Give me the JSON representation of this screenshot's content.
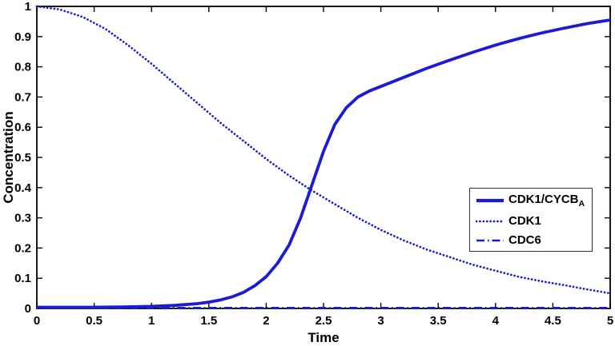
{
  "figure": {
    "background": "#ffffff",
    "frame_color": "#000000"
  },
  "chart_data": {
    "type": "line",
    "title": "",
    "xlabel": "Time",
    "ylabel": "Concentration",
    "xlim": [
      0,
      5
    ],
    "ylim": [
      0,
      1
    ],
    "grid": false,
    "legend_position": "right-center",
    "xticks": [
      0,
      0.5,
      1,
      1.5,
      2,
      2.5,
      3,
      3.5,
      4,
      4.5,
      5
    ],
    "xtick_labels": [
      "0",
      "0.5",
      "1",
      "1.5",
      "2",
      "2.5",
      "3",
      "3.5",
      "4",
      "4.5",
      "5"
    ],
    "yticks": [
      0,
      0.1,
      0.2,
      0.3,
      0.4,
      0.5,
      0.6,
      0.7,
      0.8,
      0.9,
      1
    ],
    "ytick_labels": [
      "0",
      "0.1",
      "0.2",
      "0.3",
      "0.4",
      "0.5",
      "0.6",
      "0.7",
      "0.8",
      "0.9",
      "1"
    ],
    "line_color": "#1b1bd6",
    "series": [
      {
        "name": "CDK1/CYCB_A",
        "label": "CDK1/CYCB",
        "label_sub": "A",
        "style": "solid",
        "color": "#1b1bd6",
        "points": [
          [
            0,
            0.004
          ],
          [
            0.25,
            0.004
          ],
          [
            0.5,
            0.004
          ],
          [
            0.75,
            0.005
          ],
          [
            1.0,
            0.007
          ],
          [
            1.2,
            0.01
          ],
          [
            1.4,
            0.016
          ],
          [
            1.5,
            0.021
          ],
          [
            1.6,
            0.028
          ],
          [
            1.7,
            0.038
          ],
          [
            1.8,
            0.053
          ],
          [
            1.9,
            0.075
          ],
          [
            2.0,
            0.105
          ],
          [
            2.1,
            0.15
          ],
          [
            2.2,
            0.21
          ],
          [
            2.3,
            0.3
          ],
          [
            2.4,
            0.41
          ],
          [
            2.5,
            0.52
          ],
          [
            2.6,
            0.61
          ],
          [
            2.7,
            0.665
          ],
          [
            2.8,
            0.7
          ],
          [
            2.9,
            0.72
          ],
          [
            3.0,
            0.735
          ],
          [
            3.2,
            0.765
          ],
          [
            3.4,
            0.795
          ],
          [
            3.6,
            0.822
          ],
          [
            3.8,
            0.848
          ],
          [
            4.0,
            0.872
          ],
          [
            4.2,
            0.893
          ],
          [
            4.4,
            0.912
          ],
          [
            4.6,
            0.928
          ],
          [
            4.8,
            0.943
          ],
          [
            5.0,
            0.955
          ]
        ]
      },
      {
        "name": "CDK1",
        "label": "CDK1",
        "label_sub": "",
        "style": "dotted",
        "color": "#1b1bd6",
        "points": [
          [
            0,
            1.0
          ],
          [
            0.2,
            0.99
          ],
          [
            0.4,
            0.965
          ],
          [
            0.6,
            0.925
          ],
          [
            0.8,
            0.87
          ],
          [
            1.0,
            0.81
          ],
          [
            1.2,
            0.745
          ],
          [
            1.4,
            0.68
          ],
          [
            1.6,
            0.615
          ],
          [
            1.8,
            0.555
          ],
          [
            2.0,
            0.495
          ],
          [
            2.2,
            0.44
          ],
          [
            2.4,
            0.39
          ],
          [
            2.6,
            0.345
          ],
          [
            2.8,
            0.3
          ],
          [
            3.0,
            0.26
          ],
          [
            3.2,
            0.225
          ],
          [
            3.4,
            0.195
          ],
          [
            3.6,
            0.17
          ],
          [
            3.8,
            0.145
          ],
          [
            4.0,
            0.125
          ],
          [
            4.2,
            0.105
          ],
          [
            4.4,
            0.09
          ],
          [
            4.6,
            0.077
          ],
          [
            4.8,
            0.063
          ],
          [
            5.0,
            0.05
          ]
        ]
      },
      {
        "name": "CDC6",
        "label": "CDC6",
        "label_sub": "",
        "style": "dashdot",
        "color": "#1b1bd6",
        "points": [
          [
            0,
            0.002
          ],
          [
            1,
            0.002
          ],
          [
            2,
            0.002
          ],
          [
            3,
            0.002
          ],
          [
            4,
            0.002
          ],
          [
            5,
            0.002
          ]
        ]
      }
    ]
  }
}
